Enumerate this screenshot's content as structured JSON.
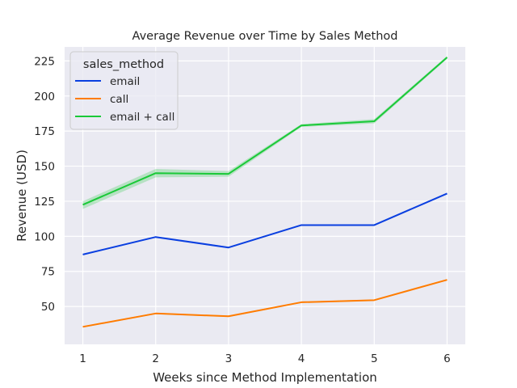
{
  "chart_data": {
    "type": "line",
    "title": "Average Revenue over Time by Sales Method",
    "xlabel": "Weeks since Method Implementation",
    "ylabel": "Revenue (USD)",
    "x": [
      1,
      2,
      3,
      4,
      5,
      6
    ],
    "xticks": [
      "1",
      "2",
      "3",
      "4",
      "5",
      "6"
    ],
    "xlim": [
      0.75,
      6.25
    ],
    "ylim": [
      23,
      235
    ],
    "yticks": [
      50,
      75,
      100,
      125,
      150,
      175,
      200,
      225
    ],
    "grid": true,
    "legend": {
      "title": "sales_method",
      "placement": "top-left"
    },
    "series": [
      {
        "name": "email",
        "color": "#0a3fe0",
        "values": [
          87,
          99.5,
          92,
          108,
          108,
          130.5
        ],
        "ci_low": [
          86.5,
          99,
          91.5,
          107.5,
          107.5,
          130
        ],
        "ci_high": [
          87.5,
          100,
          92.5,
          108.5,
          108.5,
          131
        ]
      },
      {
        "name": "call",
        "color": "#ff7c00",
        "values": [
          35.5,
          45,
          43,
          53,
          54.5,
          69
        ],
        "ci_low": [
          35,
          44.5,
          42.5,
          52.5,
          54,
          68.5
        ],
        "ci_high": [
          36,
          45.5,
          43.5,
          53.5,
          55,
          69.5
        ]
      },
      {
        "name": "email + call",
        "color": "#1ac938",
        "values": [
          122.5,
          145,
          144.5,
          179,
          182,
          227.5
        ],
        "ci_low": [
          119.5,
          142,
          142.5,
          178,
          180.5,
          226.5
        ],
        "ci_high": [
          125,
          148,
          146.5,
          180,
          183.5,
          228.5
        ]
      }
    ]
  }
}
